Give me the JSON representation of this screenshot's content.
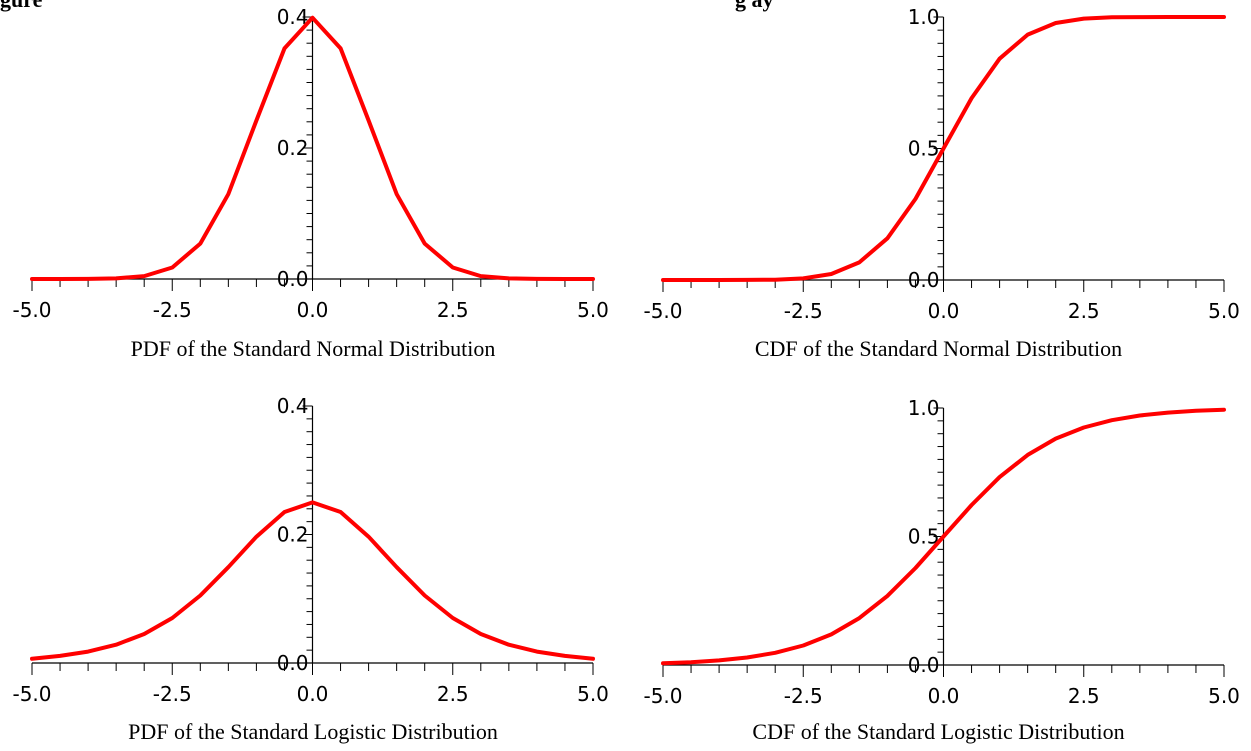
{
  "headings": {
    "left": "gure",
    "right": "g  ay"
  },
  "line_color": "#ff0000",
  "chart_data": [
    {
      "type": "line",
      "title": "PDF of the Standard Normal Distribution",
      "xlabel": "",
      "ylabel": "",
      "xlim": [
        -5.0,
        5.0
      ],
      "ylim": [
        0.0,
        0.4
      ],
      "x_ticks": [
        "-5.0",
        "-2.5",
        "0.0",
        "2.5",
        "5.0"
      ],
      "y_ticks": [
        "0.0",
        "0.2",
        "0.4"
      ],
      "grid": false,
      "x": [
        -5.0,
        -4.5,
        -4.0,
        -3.5,
        -3.0,
        -2.5,
        -2.0,
        -1.5,
        -1.0,
        -0.5,
        0.0,
        0.5,
        1.0,
        1.5,
        2.0,
        2.5,
        3.0,
        3.5,
        4.0,
        4.5,
        5.0
      ],
      "y": [
        0.0,
        0.0,
        0.0001,
        0.0009,
        0.0044,
        0.0175,
        0.054,
        0.1295,
        0.242,
        0.3521,
        0.3989,
        0.3521,
        0.242,
        0.1295,
        0.054,
        0.0175,
        0.0044,
        0.0009,
        0.0001,
        0.0,
        0.0
      ]
    },
    {
      "type": "line",
      "title": "CDF of the Standard Normal Distribution",
      "xlabel": "",
      "ylabel": "",
      "xlim": [
        -5.0,
        5.0
      ],
      "ylim": [
        0.0,
        1.0
      ],
      "x_ticks": [
        "-5.0",
        "-2.5",
        "0.0",
        "2.5",
        "5.0"
      ],
      "y_ticks": [
        "0.0",
        "0.5",
        "1.0"
      ],
      "grid": false,
      "x": [
        -5.0,
        -4.5,
        -4.0,
        -3.5,
        -3.0,
        -2.5,
        -2.0,
        -1.5,
        -1.0,
        -0.5,
        0.0,
        0.5,
        1.0,
        1.5,
        2.0,
        2.5,
        3.0,
        3.5,
        4.0,
        4.5,
        5.0
      ],
      "y": [
        0.0,
        0.0,
        0.0,
        0.0002,
        0.0013,
        0.0062,
        0.0228,
        0.0668,
        0.1587,
        0.3085,
        0.5,
        0.6915,
        0.8413,
        0.9332,
        0.9772,
        0.9938,
        0.9987,
        0.9998,
        1.0,
        1.0,
        1.0
      ]
    },
    {
      "type": "line",
      "title": "PDF of the Standard Logistic Distribution",
      "xlabel": "",
      "ylabel": "",
      "xlim": [
        -5.0,
        5.0
      ],
      "ylim": [
        0.0,
        0.4
      ],
      "x_ticks": [
        "-5.0",
        "-2.5",
        "0.0",
        "2.5",
        "5.0"
      ],
      "y_ticks": [
        "0.0",
        "0.2",
        "0.4"
      ],
      "grid": false,
      "x": [
        -5.0,
        -4.5,
        -4.0,
        -3.5,
        -3.0,
        -2.5,
        -2.0,
        -1.5,
        -1.0,
        -0.5,
        0.0,
        0.5,
        1.0,
        1.5,
        2.0,
        2.5,
        3.0,
        3.5,
        4.0,
        4.5,
        5.0
      ],
      "y": [
        0.0066,
        0.011,
        0.0177,
        0.0285,
        0.0452,
        0.0701,
        0.105,
        0.1491,
        0.1966,
        0.235,
        0.25,
        0.235,
        0.1966,
        0.1491,
        0.105,
        0.0701,
        0.0452,
        0.0285,
        0.0177,
        0.011,
        0.0066
      ]
    },
    {
      "type": "line",
      "title": "CDF of the Standard Logistic Distribution",
      "xlabel": "",
      "ylabel": "",
      "xlim": [
        -5.0,
        5.0
      ],
      "ylim": [
        0.0,
        1.0
      ],
      "x_ticks": [
        "-5.0",
        "-2.5",
        "0.0",
        "2.5",
        "5.0"
      ],
      "y_ticks": [
        "0.0",
        "0.5",
        "1.0"
      ],
      "grid": false,
      "x": [
        -5.0,
        -4.5,
        -4.0,
        -3.5,
        -3.0,
        -2.5,
        -2.0,
        -1.5,
        -1.0,
        -0.5,
        0.0,
        0.5,
        1.0,
        1.5,
        2.0,
        2.5,
        3.0,
        3.5,
        4.0,
        4.5,
        5.0
      ],
      "y": [
        0.0067,
        0.011,
        0.018,
        0.0293,
        0.0474,
        0.0759,
        0.1192,
        0.1824,
        0.2689,
        0.3775,
        0.5,
        0.6225,
        0.7311,
        0.8176,
        0.8808,
        0.9241,
        0.9526,
        0.9707,
        0.982,
        0.989,
        0.9933
      ]
    }
  ]
}
